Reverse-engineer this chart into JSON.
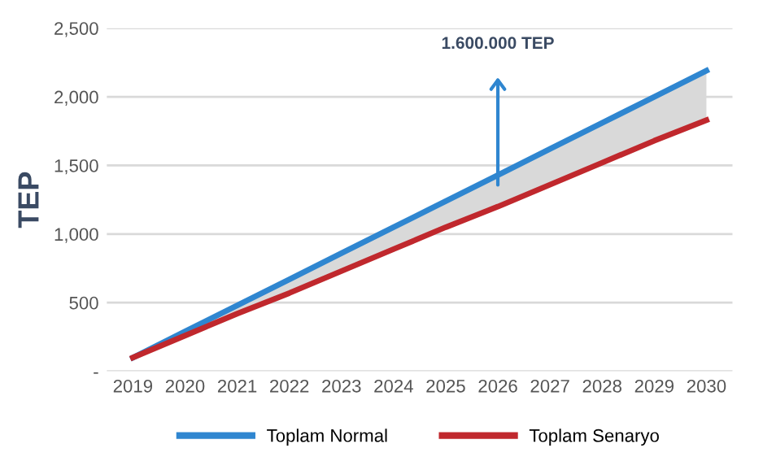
{
  "chart_data": {
    "type": "line",
    "ylabel": "TEP",
    "categories": [
      "2019",
      "2020",
      "2021",
      "2022",
      "2023",
      "2024",
      "2025",
      "2026",
      "2027",
      "2028",
      "2029",
      "2030"
    ],
    "series": [
      {
        "name": "Toplam Normal",
        "color": "#2f86d0",
        "values": [
          100,
          290,
          480,
          670,
          860,
          1050,
          1240,
          1430,
          1620,
          1810,
          2000,
          2190
        ],
        "lower": [
          100,
          260,
          420,
          570,
          730,
          890,
          1050,
          1200,
          1360,
          1520,
          1680,
          1830
        ],
        "upper": [
          100,
          290,
          480,
          670,
          860,
          1050,
          1240,
          1430,
          1620,
          1810,
          2000,
          2190
        ]
      },
      {
        "name": "Toplam Senaryo",
        "color": "#c0282d",
        "values": [
          100,
          260,
          420,
          570,
          730,
          890,
          1050,
          1200,
          1360,
          1520,
          1680,
          1830
        ]
      }
    ],
    "ylim": [
      0,
      2500
    ],
    "yticks": [
      {
        "value": 0,
        "label": "-"
      },
      {
        "value": 500,
        "label": "500"
      },
      {
        "value": 1000,
        "label": "1,000"
      },
      {
        "value": 1500,
        "label": "1,500"
      },
      {
        "value": 2000,
        "label": "2,000"
      },
      {
        "value": 2500,
        "label": "2,500"
      }
    ],
    "annotations": [
      "1.600.000 TEP"
    ],
    "grid": "y",
    "legend": "bottom",
    "marker": "none",
    "line_style": "solid"
  }
}
